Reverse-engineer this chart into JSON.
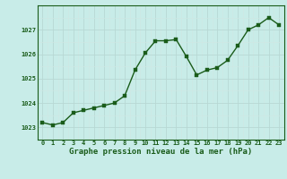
{
  "x": [
    0,
    1,
    2,
    3,
    4,
    5,
    6,
    7,
    8,
    9,
    10,
    11,
    12,
    13,
    14,
    15,
    16,
    17,
    18,
    19,
    20,
    21,
    22,
    23
  ],
  "y": [
    1023.2,
    1023.1,
    1023.2,
    1023.6,
    1023.7,
    1023.8,
    1023.9,
    1024.0,
    1024.3,
    1025.35,
    1026.05,
    1026.55,
    1026.55,
    1026.6,
    1025.9,
    1025.15,
    1025.35,
    1025.45,
    1025.75,
    1026.35,
    1027.0,
    1027.2,
    1027.5,
    1027.2
  ],
  "line_color": "#1a5c1a",
  "marker_color": "#1a5c1a",
  "background_color": "#c8ece8",
  "grid_color": "#b8d8d4",
  "xlabel": "Graphe pression niveau de la mer (hPa)",
  "xlabel_color": "#1a5c1a",
  "yticks": [
    1023,
    1024,
    1025,
    1026,
    1027
  ],
  "ylim": [
    1022.6,
    1027.85
  ],
  "xlim": [
    -0.5,
    23.5
  ],
  "xtick_labels": [
    "0",
    "1",
    "2",
    "3",
    "4",
    "5",
    "6",
    "7",
    "8",
    "9",
    "10",
    "11",
    "12",
    "13",
    "14",
    "15",
    "16",
    "17",
    "18",
    "19",
    "20",
    "21",
    "22",
    "23"
  ],
  "tick_color": "#1a5c1a",
  "tick_fontsize": 5.0,
  "xlabel_fontsize": 6.5,
  "line_width": 1.0,
  "marker_size": 2.5
}
